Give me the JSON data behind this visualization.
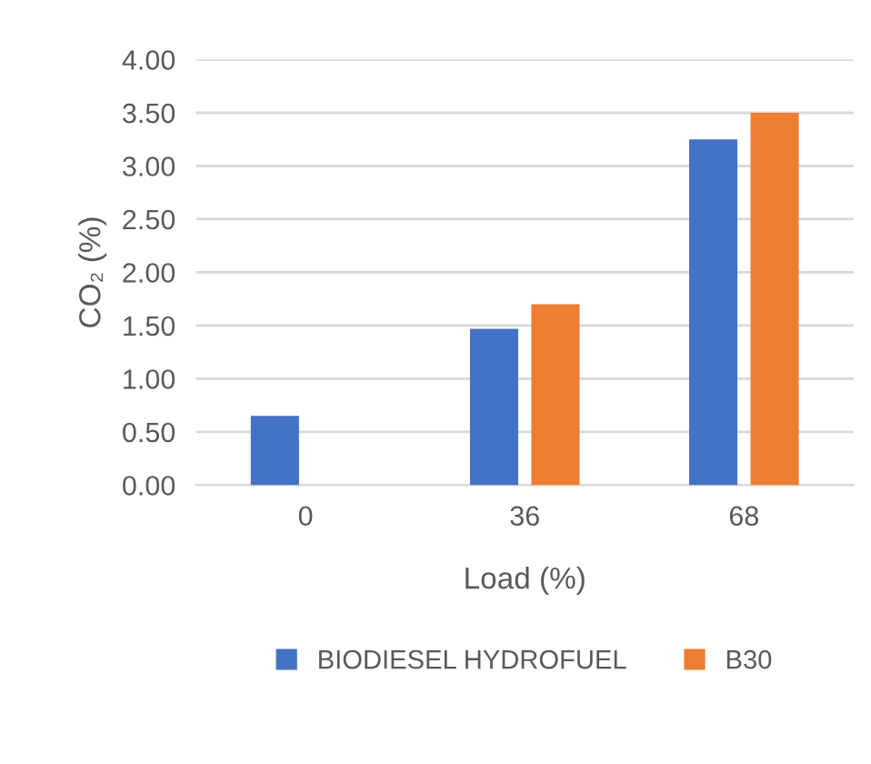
{
  "chart_data": {
    "type": "bar",
    "xlabel": "Load (%)",
    "ylabel": "CO₂ (%)",
    "categories": [
      "0",
      "36",
      "68"
    ],
    "series": [
      {
        "name": "BIODIESEL HYDROFUEL",
        "color": "#4472c4",
        "values": [
          0.65,
          1.47,
          3.25
        ]
      },
      {
        "name": "B30",
        "color": "#ed7d31",
        "values": [
          null,
          1.7,
          3.5
        ]
      }
    ],
    "ylim": [
      0,
      4
    ],
    "yticks": [
      {
        "value": 0,
        "label": "0.00"
      },
      {
        "value": 0.5,
        "label": "0.50"
      },
      {
        "value": 1,
        "label": "1.00"
      },
      {
        "value": 1.5,
        "label": "1.50"
      },
      {
        "value": 2,
        "label": "2.00"
      },
      {
        "value": 2.5,
        "label": "2.50"
      },
      {
        "value": 3,
        "label": "3.00"
      },
      {
        "value": 3.5,
        "label": "3.50"
      },
      {
        "value": 4,
        "label": "4.00"
      }
    ],
    "grid": "y",
    "legend": "bottom"
  }
}
